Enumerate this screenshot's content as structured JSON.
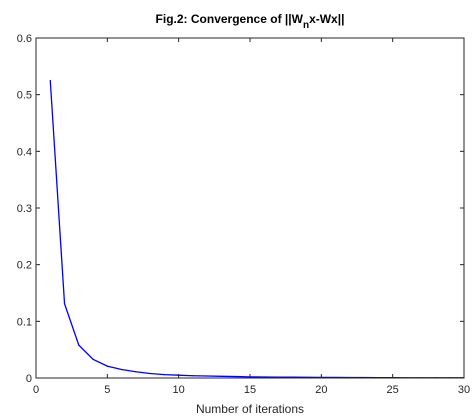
{
  "chart_data": {
    "type": "line",
    "title": {
      "main": "Fig.2: Convergence of ||W",
      "subscript": "n",
      "rest": "x-Wx||"
    },
    "xlabel": "Number of iterations",
    "ylabel": "",
    "xlim": [
      0,
      30
    ],
    "ylim": [
      0,
      0.6
    ],
    "xticks": [
      "0",
      "5",
      "10",
      "15",
      "20",
      "25",
      "30"
    ],
    "yticks": [
      "0",
      "0.1",
      "0.2",
      "0.3",
      "0.4",
      "0.5",
      "0.6"
    ],
    "grid": false,
    "line_color": "#0000ff",
    "x": [
      1,
      2,
      3,
      4,
      5,
      6,
      7,
      8,
      9,
      10,
      11,
      12,
      13,
      14,
      15,
      16,
      17,
      18,
      19,
      20,
      21,
      22,
      23,
      24,
      25,
      26,
      27,
      28,
      29,
      30
    ],
    "y": [
      0.525,
      0.131,
      0.058,
      0.033,
      0.021,
      0.015,
      0.011,
      0.008,
      0.006,
      0.005,
      0.004,
      0.0035,
      0.003,
      0.0025,
      0.002,
      0.0018,
      0.0016,
      0.0014,
      0.0012,
      0.0011,
      0.001,
      0.0009,
      0.0008,
      0.0007,
      0.0006,
      0.0005,
      0.0005,
      0.0004,
      0.0004,
      0.0003
    ]
  }
}
